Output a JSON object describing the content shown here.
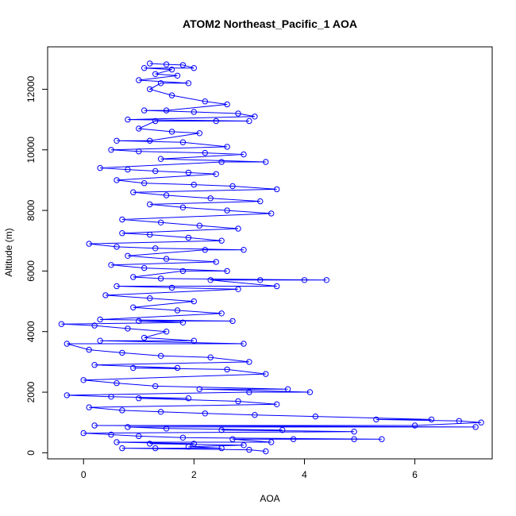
{
  "chart_data": {
    "type": "scatter",
    "title": "ATOM2 Northeast_Pacific_1 AOA",
    "xlabel": "AOA",
    "ylabel": "Altitude (m)",
    "xlim": [
      -0.65,
      7.4
    ],
    "ylim": [
      -200,
      13400
    ],
    "xticks": [
      "0",
      "2",
      "4",
      "6"
    ],
    "yticks": [
      "0",
      "2000",
      "4000",
      "6000",
      "8000",
      "10000",
      "12000"
    ],
    "colors": {
      "series": "#0000ff",
      "axis": "#000000",
      "background": "#ffffff"
    },
    "marker": "open-circle",
    "grid": false,
    "legend": "none",
    "series": [
      {
        "points": [
          [
            1.2,
            12850
          ],
          [
            1.5,
            12820
          ],
          [
            1.8,
            12800
          ],
          [
            1.1,
            12700
          ],
          [
            1.6,
            12650
          ],
          [
            2.0,
            12700
          ],
          [
            1.3,
            12500
          ],
          [
            1.7,
            12450
          ],
          [
            1.0,
            12300
          ],
          [
            1.4,
            12200
          ],
          [
            1.9,
            12200
          ],
          [
            1.2,
            12000
          ],
          [
            1.6,
            11800
          ],
          [
            2.2,
            11600
          ],
          [
            2.6,
            11500
          ],
          [
            1.1,
            11300
          ],
          [
            1.5,
            11300
          ],
          [
            2.0,
            11250
          ],
          [
            2.8,
            11200
          ],
          [
            3.1,
            11100
          ],
          [
            0.8,
            11000
          ],
          [
            1.3,
            10950
          ],
          [
            2.4,
            10950
          ],
          [
            3.0,
            10950
          ],
          [
            1.0,
            10700
          ],
          [
            1.6,
            10600
          ],
          [
            2.1,
            10550
          ],
          [
            0.6,
            10300
          ],
          [
            1.2,
            10300
          ],
          [
            1.8,
            10250
          ],
          [
            2.6,
            10100
          ],
          [
            0.5,
            10000
          ],
          [
            1.0,
            9950
          ],
          [
            2.2,
            9900
          ],
          [
            2.9,
            9850
          ],
          [
            1.4,
            9700
          ],
          [
            2.5,
            9600
          ],
          [
            3.3,
            9600
          ],
          [
            0.3,
            9400
          ],
          [
            0.8,
            9350
          ],
          [
            1.3,
            9300
          ],
          [
            1.9,
            9250
          ],
          [
            2.4,
            9200
          ],
          [
            0.6,
            9000
          ],
          [
            1.1,
            8900
          ],
          [
            2.0,
            8850
          ],
          [
            2.7,
            8800
          ],
          [
            3.5,
            8700
          ],
          [
            0.9,
            8600
          ],
          [
            1.5,
            8500
          ],
          [
            2.3,
            8400
          ],
          [
            3.2,
            8300
          ],
          [
            1.2,
            8200
          ],
          [
            1.8,
            8100
          ],
          [
            2.6,
            8000
          ],
          [
            3.4,
            7900
          ],
          [
            0.7,
            7700
          ],
          [
            1.4,
            7600
          ],
          [
            2.1,
            7500
          ],
          [
            2.8,
            7400
          ],
          [
            0.7,
            7250
          ],
          [
            1.2,
            7200
          ],
          [
            1.9,
            7100
          ],
          [
            2.5,
            7000
          ],
          [
            0.1,
            6900
          ],
          [
            0.6,
            6800
          ],
          [
            1.3,
            6750
          ],
          [
            2.2,
            6700
          ],
          [
            2.9,
            6700
          ],
          [
            0.8,
            6500
          ],
          [
            1.5,
            6400
          ],
          [
            2.4,
            6300
          ],
          [
            0.5,
            6200
          ],
          [
            1.1,
            6100
          ],
          [
            1.8,
            6000
          ],
          [
            2.6,
            6000
          ],
          [
            0.9,
            5800
          ],
          [
            1.4,
            5750
          ],
          [
            2.3,
            5700
          ],
          [
            3.2,
            5700
          ],
          [
            4.0,
            5700
          ],
          [
            4.4,
            5700
          ],
          [
            0.6,
            5500
          ],
          [
            1.6,
            5450
          ],
          [
            2.8,
            5400
          ],
          [
            3.5,
            5500
          ],
          [
            0.4,
            5200
          ],
          [
            1.2,
            5100
          ],
          [
            2.0,
            5000
          ],
          [
            0.9,
            4800
          ],
          [
            1.7,
            4700
          ],
          [
            2.5,
            4600
          ],
          [
            0.3,
            4400
          ],
          [
            1.0,
            4350
          ],
          [
            1.8,
            4300
          ],
          [
            2.7,
            4350
          ],
          [
            -0.4,
            4250
          ],
          [
            0.2,
            4200
          ],
          [
            0.8,
            4100
          ],
          [
            1.5,
            4000
          ],
          [
            -0.3,
            3600
          ],
          [
            0.3,
            3700
          ],
          [
            1.1,
            3800
          ],
          [
            2.0,
            3700
          ],
          [
            2.9,
            3600
          ],
          [
            0.1,
            3400
          ],
          [
            0.7,
            3300
          ],
          [
            1.4,
            3200
          ],
          [
            2.3,
            3150
          ],
          [
            3.0,
            3000
          ],
          [
            0.2,
            2900
          ],
          [
            0.9,
            2800
          ],
          [
            1.7,
            2800
          ],
          [
            2.6,
            2750
          ],
          [
            3.3,
            2600
          ],
          [
            0.0,
            2400
          ],
          [
            0.6,
            2300
          ],
          [
            1.3,
            2200
          ],
          [
            2.1,
            2100
          ],
          [
            3.0,
            2000
          ],
          [
            3.7,
            2100
          ],
          [
            4.1,
            2000
          ],
          [
            -0.3,
            1900
          ],
          [
            0.5,
            1850
          ],
          [
            1.0,
            1800
          ],
          [
            1.9,
            1800
          ],
          [
            2.8,
            1700
          ],
          [
            3.5,
            1600
          ],
          [
            0.1,
            1500
          ],
          [
            0.7,
            1400
          ],
          [
            1.4,
            1350
          ],
          [
            2.2,
            1300
          ],
          [
            3.1,
            1250
          ],
          [
            4.2,
            1200
          ],
          [
            5.3,
            1100
          ],
          [
            6.3,
            1100
          ],
          [
            6.8,
            1050
          ],
          [
            7.2,
            1000
          ],
          [
            0.2,
            900
          ],
          [
            0.8,
            850
          ],
          [
            1.5,
            800
          ],
          [
            2.5,
            750
          ],
          [
            3.6,
            750
          ],
          [
            4.9,
            700
          ],
          [
            6.0,
            900
          ],
          [
            7.1,
            850
          ],
          [
            0.0,
            650
          ],
          [
            0.5,
            600
          ],
          [
            1.0,
            550
          ],
          [
            1.8,
            500
          ],
          [
            2.7,
            450
          ],
          [
            3.8,
            450
          ],
          [
            4.9,
            450
          ],
          [
            5.4,
            450
          ],
          [
            0.6,
            350
          ],
          [
            1.2,
            300
          ],
          [
            2.0,
            300
          ],
          [
            2.9,
            250
          ],
          [
            3.4,
            350
          ],
          [
            0.7,
            150
          ],
          [
            1.3,
            150
          ],
          [
            1.9,
            200
          ],
          [
            2.5,
            150
          ],
          [
            3.0,
            100
          ],
          [
            3.3,
            50
          ]
        ]
      }
    ]
  }
}
